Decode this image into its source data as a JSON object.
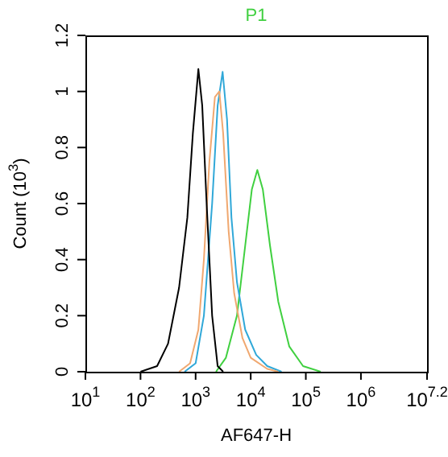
{
  "chart_data": {
    "type": "line",
    "title": "P1",
    "xlabel": "AF647-H",
    "ylabel": "Count (10$^{3}$)",
    "log": "x",
    "marker": "none",
    "line_style": "solid",
    "xlim": [
      10,
      15848932
    ],
    "xticks": [
      {
        "value": 10,
        "label": "10$^{1}$"
      },
      {
        "value": 100,
        "label": "10$^{2}$"
      },
      {
        "value": 1000,
        "label": "10$^{3}$"
      },
      {
        "value": 10000,
        "label": "10$^{4}$"
      },
      {
        "value": 100000,
        "label": "10$^{5}$"
      },
      {
        "value": 1000000,
        "label": "10$^{6}$"
      },
      {
        "value": 15848932,
        "label": "10$^{7.2}$"
      }
    ],
    "ylim": [
      0,
      1.2
    ],
    "yticks": [
      0,
      0.2,
      0.4,
      0.6,
      0.8,
      1,
      1.2
    ],
    "series": [
      {
        "color": "#000000",
        "x": [
          100,
          200,
          316,
          501,
          708,
          891,
          1122,
          1318,
          1585,
          1995,
          2512,
          3162
        ],
        "values": [
          0,
          0.02,
          0.1,
          0.3,
          0.55,
          0.85,
          1.08,
          0.95,
          0.6,
          0.2,
          0.02,
          0
        ]
      },
      {
        "color": "#f0a870",
        "x": [
          501,
          794,
          1122,
          1413,
          1778,
          2239,
          2692,
          3162,
          3981,
          5012,
          7079,
          10000,
          19953,
          31623
        ],
        "values": [
          0,
          0.03,
          0.15,
          0.4,
          0.75,
          0.98,
          1.0,
          0.85,
          0.5,
          0.28,
          0.12,
          0.05,
          0.01,
          0
        ]
      },
      {
        "color": "#30a8d8",
        "x": [
          631,
          1000,
          1413,
          1995,
          2512,
          3090,
          3715,
          4467,
          5623,
          7943,
          12589,
          19953,
          36308
        ],
        "values": [
          0,
          0.03,
          0.2,
          0.6,
          0.95,
          1.07,
          0.9,
          0.55,
          0.32,
          0.15,
          0.06,
          0.02,
          0
        ]
      },
      {
        "color": "#40d040",
        "x": [
          2344,
          3548,
          5623,
          7943,
          10471,
          13183,
          16596,
          22387,
          31623,
          50119,
          89125,
          186209
        ],
        "values": [
          0,
          0.05,
          0.2,
          0.45,
          0.65,
          0.72,
          0.65,
          0.45,
          0.25,
          0.09,
          0.02,
          0
        ]
      }
    ]
  }
}
